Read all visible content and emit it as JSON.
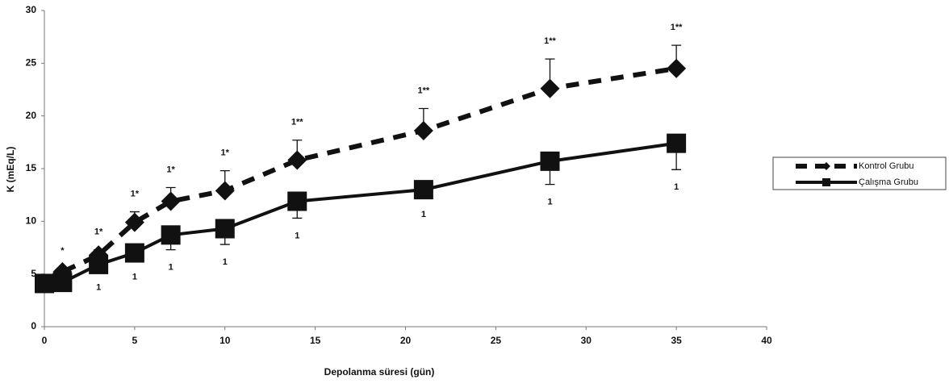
{
  "chart_data": {
    "type": "line",
    "x_label": "Depolanma süresi (gün)",
    "y_label": "K (mEq/L)",
    "xlim": [
      0,
      40
    ],
    "xticks": [
      0,
      5,
      10,
      15,
      20,
      25,
      30,
      35,
      40
    ],
    "ylim": [
      0,
      30
    ],
    "yticks": [
      0,
      5,
      10,
      15,
      20,
      25,
      30
    ],
    "grid": false,
    "legend_position": "right",
    "x": [
      0,
      1,
      3,
      5,
      7,
      10,
      14,
      21,
      28,
      35
    ],
    "series": [
      {
        "name": "Kontrol Grubu",
        "color": "#111111",
        "dash": true,
        "marker": "diamond",
        "error_direction": "up",
        "values": [
          4.1,
          5.2,
          6.8,
          9.9,
          11.9,
          12.9,
          15.8,
          18.6,
          22.6,
          24.5
        ],
        "errors": [
          0.2,
          0.3,
          0.5,
          1.0,
          1.3,
          1.9,
          1.9,
          2.1,
          2.8,
          2.2
        ],
        "point_labels": [
          null,
          "*",
          "1*",
          "1*",
          "1*",
          "1*",
          "1**",
          "1**",
          "1**",
          "1**"
        ]
      },
      {
        "name": "Çalışma Grubu",
        "color": "#111111",
        "dash": false,
        "marker": "square",
        "error_direction": "down",
        "values": [
          4.1,
          4.2,
          5.9,
          7.0,
          8.7,
          9.3,
          11.9,
          13.0,
          15.7,
          17.4
        ],
        "errors": [
          0.2,
          0.3,
          0.5,
          0.6,
          1.4,
          1.5,
          1.6,
          0.7,
          2.2,
          2.5
        ],
        "point_labels": [
          null,
          null,
          "1",
          "1",
          "1",
          "1",
          "1",
          "1",
          "1",
          "1"
        ]
      }
    ]
  }
}
